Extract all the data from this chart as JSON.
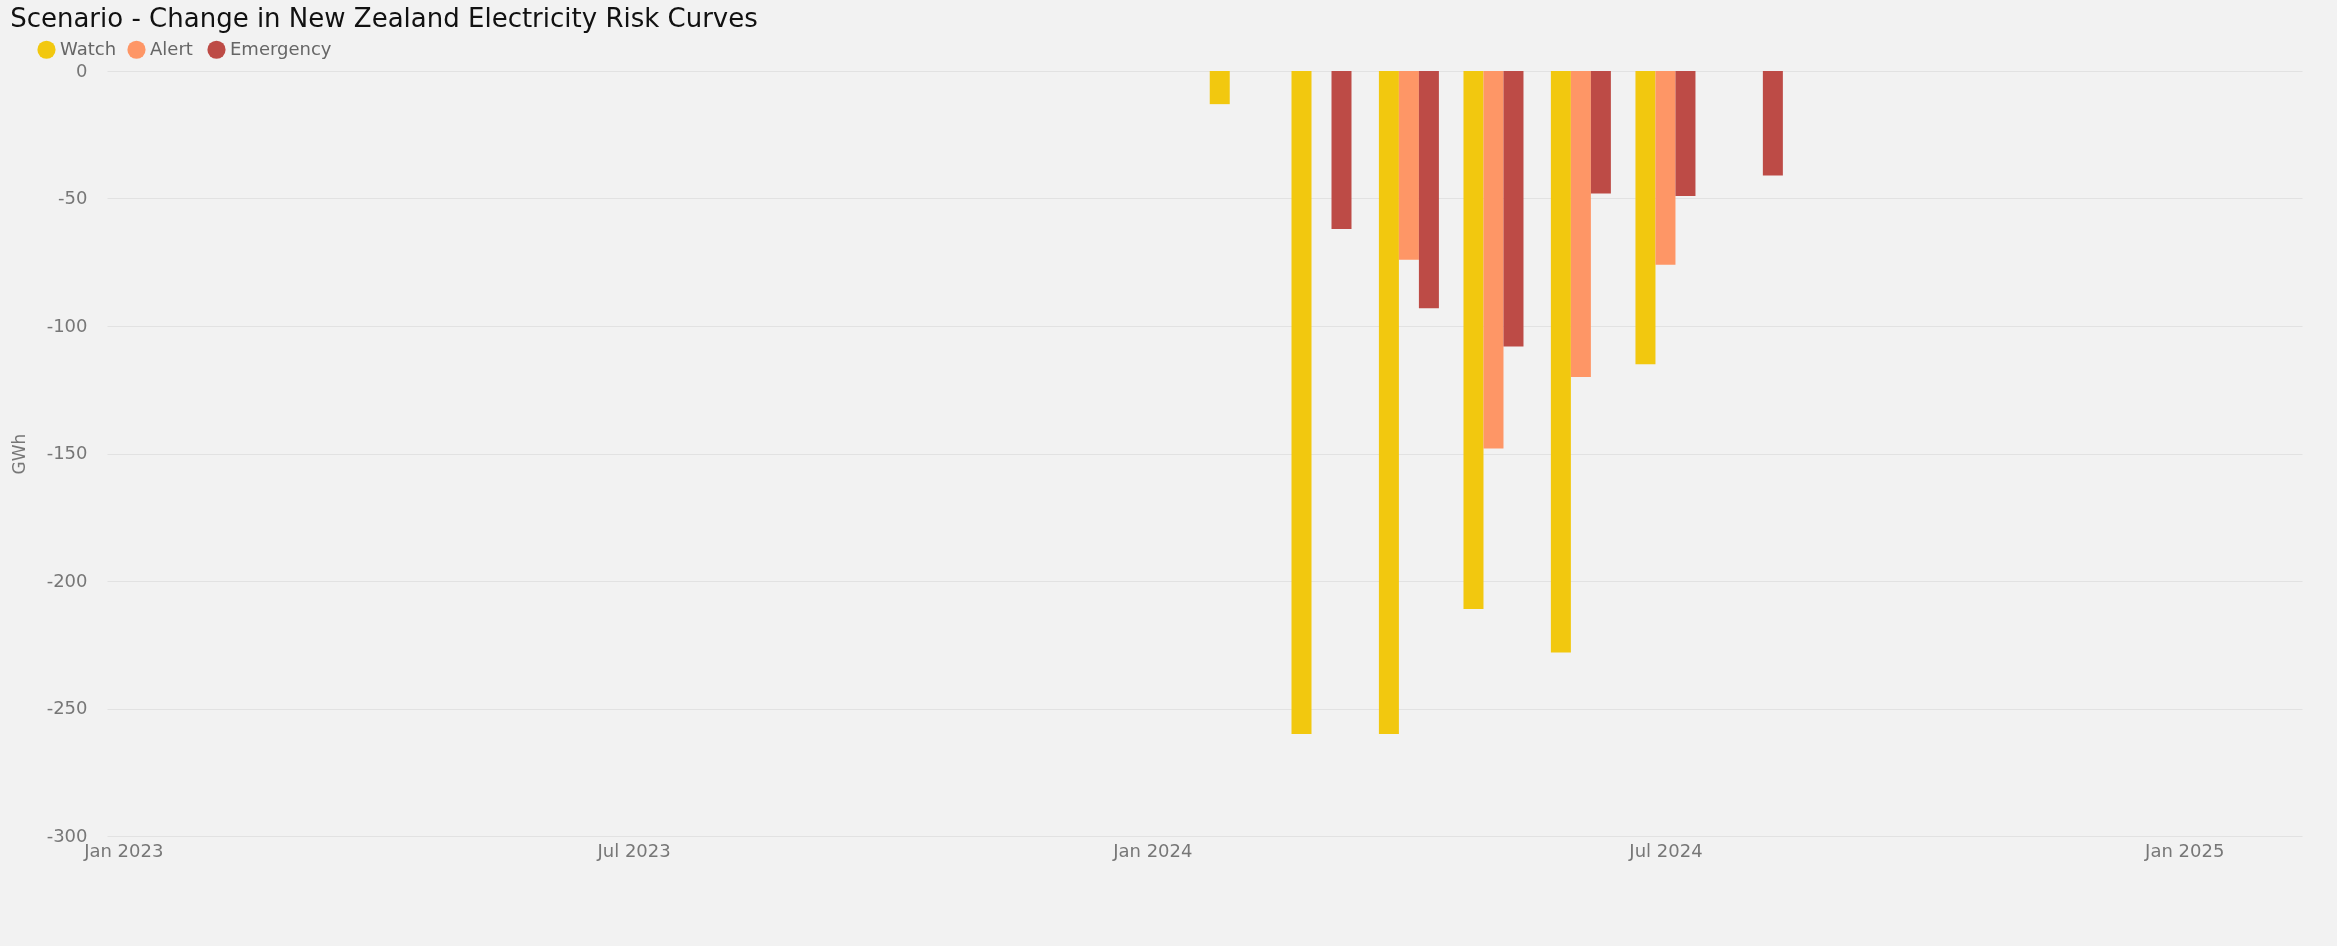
{
  "chart_data": {
    "type": "bar",
    "title": "Scenario - Change in New Zealand Electricity Risk Curves",
    "ylabel": "GWh",
    "x": [
      "2024-02-01",
      "2024-03-01",
      "2024-04-01",
      "2024-05-01",
      "2024-06-01",
      "2024-07-01",
      "2024-08-01"
    ],
    "series": [
      {
        "name": "Watch",
        "color": "#f2c80f",
        "values": [
          -13,
          -260,
          -260,
          -211,
          -228,
          -115,
          null
        ]
      },
      {
        "name": "Alert",
        "color": "#fe9666",
        "values": [
          null,
          null,
          -74,
          -148,
          -120,
          -76,
          null
        ]
      },
      {
        "name": "Emergency",
        "color": "#bd4b46",
        "values": [
          null,
          -62,
          -93,
          -108,
          -48,
          -49,
          -41
        ]
      }
    ],
    "xlim": [
      "2022-12-28",
      "2025-02-10"
    ],
    "xticks": [
      {
        "value": "2023-01-01",
        "label": "Jan 2023"
      },
      {
        "value": "2023-07-01",
        "label": "Jul 2023"
      },
      {
        "value": "2024-01-01",
        "label": "Jan 2024"
      },
      {
        "value": "2024-07-01",
        "label": "Jul 2024"
      },
      {
        "value": "2025-01-01",
        "label": "Jan 2025"
      }
    ],
    "ylim": [
      -300,
      0
    ],
    "yticks": [
      -300,
      -250,
      -200,
      -150,
      -100,
      -50,
      0
    ],
    "grid": "y",
    "legend": "top left"
  }
}
